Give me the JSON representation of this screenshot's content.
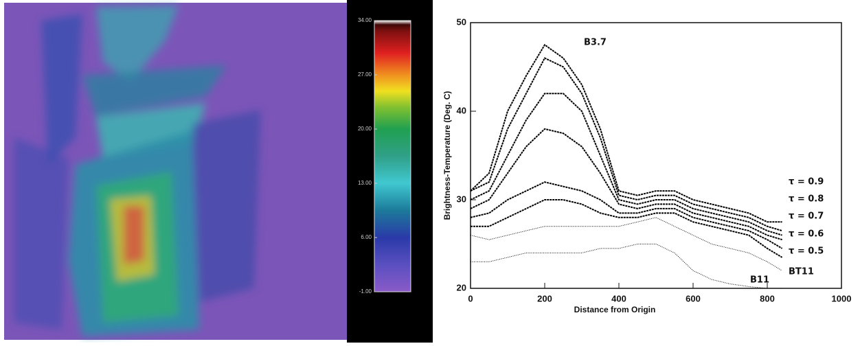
{
  "chart_data": [
    {
      "type": "heatmap",
      "clim": [
        -1,
        34
      ],
      "colorbar_ticks": [
        {
          "value": 34,
          "label": "34.00"
        },
        {
          "value": 27,
          "label": "27.00"
        },
        {
          "value": 20,
          "label": "20.00"
        },
        {
          "value": 13,
          "label": "13.00"
        },
        {
          "value": 6,
          "label": "6.00"
        },
        {
          "value": -1,
          "label": "-1.00"
        }
      ]
    },
    {
      "type": "line",
      "xlabel": "Distance from Origin",
      "ylabel": "Brightness-Temperature (Deg. C)",
      "xlim": [
        0,
        1000
      ],
      "ylim": [
        20,
        50
      ],
      "xticks": [
        0,
        200,
        400,
        600,
        800,
        1000
      ],
      "yticks": [
        20,
        30,
        40,
        50
      ],
      "x": [
        0,
        50,
        100,
        150,
        200,
        250,
        300,
        350,
        400,
        450,
        500,
        550,
        600,
        650,
        700,
        750,
        800,
        840
      ],
      "series": [
        {
          "name": "B3.7",
          "color": "#000000",
          "values": [
            31,
            33,
            40,
            44,
            47.5,
            46,
            43,
            38,
            31,
            30.5,
            31,
            31,
            30,
            29.5,
            29,
            28.5,
            27.5,
            27.5
          ]
        },
        {
          "name": "τ = 0.9",
          "color": "#000000",
          "values": [
            31,
            32,
            38,
            42,
            46,
            45,
            42,
            37,
            30.5,
            30,
            30.5,
            30.5,
            29.5,
            29,
            28.5,
            28,
            27,
            26.5
          ]
        },
        {
          "name": "τ = 0.8",
          "color": "#000000",
          "values": [
            30,
            31,
            35,
            39,
            42,
            42,
            40,
            35,
            30,
            29.5,
            30,
            30,
            29,
            28.5,
            28,
            27.5,
            26.5,
            26
          ]
        },
        {
          "name": "τ = 0.7",
          "color": "#000000",
          "values": [
            29,
            30,
            33,
            36,
            38,
            37.5,
            36,
            33,
            29.5,
            29,
            29.5,
            29.5,
            28.5,
            28,
            27.5,
            27,
            26,
            25.5
          ]
        },
        {
          "name": "τ = 0.6",
          "color": "#000000",
          "values": [
            28,
            28.5,
            30,
            31,
            32,
            31.5,
            31,
            30,
            28.5,
            28.5,
            29,
            29,
            28,
            27.5,
            27,
            26.5,
            25.5,
            24.5
          ]
        },
        {
          "name": "τ = 0.5",
          "color": "#000000",
          "values": [
            27,
            27,
            28,
            29,
            30,
            30,
            29.5,
            28.5,
            28,
            28,
            28.5,
            28.5,
            27.5,
            27,
            26.5,
            26,
            24.5,
            23.5
          ]
        },
        {
          "name": "BT11",
          "color": "#000000",
          "values": [
            26,
            25.5,
            26,
            26.5,
            27,
            27,
            27,
            27,
            27,
            27.5,
            28,
            27,
            26,
            25,
            24.5,
            24,
            23,
            22
          ]
        },
        {
          "name": "B11",
          "color": "#000000",
          "values": [
            23,
            23,
            23.5,
            24,
            24,
            24,
            24,
            24.5,
            24.5,
            25,
            25,
            24,
            22,
            21,
            20.5,
            20.2,
            20,
            20
          ]
        }
      ]
    }
  ]
}
